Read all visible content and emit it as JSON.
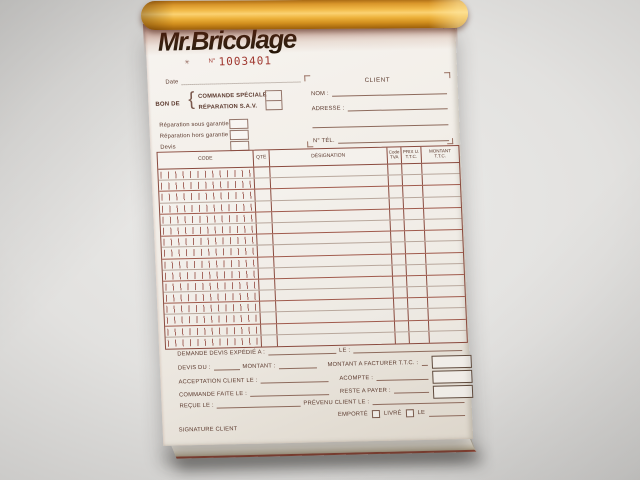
{
  "brand": {
    "logo": "Mr.Bricolage"
  },
  "serial": {
    "mark": "✳",
    "prefix": "N°",
    "number": "1003401"
  },
  "date_label": "Date",
  "order": {
    "label": "BON DE",
    "brace": "{",
    "options": [
      {
        "label": "COMMANDE SPÉCIALE"
      },
      {
        "label": "RÉPARATION S.A.V."
      }
    ]
  },
  "repair": {
    "options": [
      {
        "label": "Réparation sous garantie"
      },
      {
        "label": "Réparation hors garantie"
      },
      {
        "label": "Devis"
      }
    ]
  },
  "client": {
    "title": "CLIENT",
    "nom_label": "NOM :",
    "adresse_label": "ADRESSE :",
    "tel_label": "N° TÉL."
  },
  "table": {
    "row_count": 16,
    "headers": {
      "code": "CODE",
      "qty": "QTE",
      "designation": "DÉSIGNATION",
      "tva": "Code\nTVA",
      "price": "PRIX U.\nT.T.C.",
      "amount": "MONTANT\nT.T.C."
    }
  },
  "footer": {
    "rows": [
      {
        "left": "DEMANDE DEVIS EXPÉDIÉ A :",
        "right": "LE :"
      },
      {
        "left": "DEVIS DU :",
        "mid": "MONTANT :",
        "right": "MONTANT A FACTURER T.T.C. :"
      },
      {
        "left": "ACCEPTATION CLIENT LE :",
        "right": "ACOMPTE :"
      },
      {
        "left": "COMMANDE FAITE LE :",
        "right": "RESTE A PAYER :"
      },
      {
        "left": "REÇUE LE :",
        "right": "PRÉVENU CLIENT LE :"
      }
    ],
    "delivery": {
      "emporte": "EMPORTÉ",
      "livre": "LIVRÉ",
      "le": "LE"
    },
    "signature": "SIGNATURE CLIENT"
  },
  "colors": {
    "ink": "#5a382c",
    "grid": "#8a4a3e",
    "serial": "#a03830",
    "cover": "#f2bb4a"
  }
}
